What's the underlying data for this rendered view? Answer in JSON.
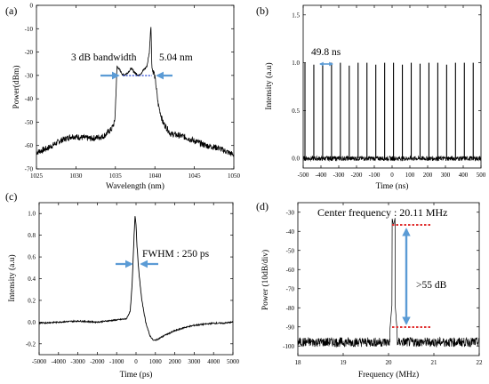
{
  "chart_data": [
    {
      "panel": "(a)",
      "type": "line",
      "xlabel": "Wavelength (nm)",
      "ylabel": "Power(dBm)",
      "xlim": [
        1025,
        1050
      ],
      "ylim": [
        -70,
        0
      ],
      "xticks": [
        "1025",
        "1030",
        "1035",
        "1040",
        "1045",
        "1050"
      ],
      "yticks": [
        "0",
        "-10",
        "-20",
        "-30",
        "-40",
        "-50",
        "-60",
        "-70"
      ],
      "series": [
        {
          "x": [
            1025.0,
            1026.5,
            1028.0,
            1029.5,
            1030.5,
            1032.0,
            1033.5,
            1034.5,
            1034.9,
            1035.0,
            1035.2,
            1035.6,
            1036.0,
            1036.5,
            1037.0,
            1037.5,
            1038.0,
            1038.5,
            1039.0,
            1039.3,
            1039.5,
            1039.6,
            1039.7,
            1039.9,
            1040.1,
            1040.4,
            1041.0,
            1042.0,
            1043.5,
            1045.0,
            1046.5,
            1048.0,
            1050.0
          ],
          "y": [
            -63,
            -61,
            -58,
            -56,
            -56.5,
            -57,
            -56,
            -53,
            -50,
            -44,
            -26,
            -28,
            -30,
            -29,
            -27,
            -29,
            -30,
            -28,
            -26,
            -20,
            -8,
            -24,
            -28,
            -29,
            -33,
            -42,
            -50,
            -55,
            -56,
            -58,
            -60,
            -61,
            -64
          ]
        }
      ],
      "annotations": [
        "3 dB bandwidth",
        "5.04 nm"
      ],
      "arrow_levels_dbm": [
        -30,
        -30
      ]
    },
    {
      "panel": "(b)",
      "type": "line",
      "xlabel": "Time (ns)",
      "ylabel": "Intensity (a.u)",
      "xlim": [
        -500,
        500
      ],
      "ylim": [
        -0.1,
        1.6
      ],
      "xticks": [
        "-500",
        "-400",
        "-300",
        "-200",
        "-100",
        "0",
        "100",
        "200",
        "300",
        "400",
        "500"
      ],
      "yticks": [
        "1.5",
        "1.0",
        "0.5",
        "0.0"
      ],
      "period_ns": 49.8,
      "pulse_heights": [
        1.0,
        0.98,
        0.99,
        1.0,
        1.0,
        0.97,
        1.0,
        1.0,
        0.98,
        1.0,
        1.0,
        0.98,
        1.0,
        0.99,
        1.0,
        1.0,
        0.98,
        1.0,
        1.0,
        1.0
      ],
      "annotations": [
        "49.8 ns"
      ]
    },
    {
      "panel": "(c)",
      "type": "line",
      "xlabel": "Time (ps)",
      "ylabel": "Intensity (a.u)",
      "xlim": [
        -5000,
        5000
      ],
      "ylim": [
        -0.3,
        1.1
      ],
      "xticks": [
        "-5000",
        "-4000",
        "-3000",
        "-2000",
        "-1000",
        "0",
        "1000",
        "2000",
        "3000",
        "4000",
        "5000"
      ],
      "yticks": [
        "1.0",
        "0.8",
        "0.6",
        "0.4",
        "0.2",
        "0.0",
        "-0.2"
      ],
      "series": [
        {
          "x": [
            -5000,
            -4000,
            -3000,
            -2000,
            -1000,
            -500,
            -300,
            -200,
            -100,
            -50,
            0,
            50,
            150,
            300,
            500,
            700,
            900,
            1100,
            1500,
            2000,
            2500,
            3000,
            3500,
            4000,
            4500,
            5000
          ],
          "y": [
            -0.01,
            0.0,
            0.01,
            0.0,
            0.02,
            0.03,
            0.1,
            0.35,
            0.8,
            0.98,
            0.9,
            0.7,
            0.45,
            0.2,
            0.0,
            -0.12,
            -0.17,
            -0.16,
            -0.12,
            -0.08,
            -0.05,
            -0.03,
            -0.02,
            -0.01,
            -0.01,
            0.0
          ]
        }
      ],
      "annotations": [
        "FWHM : 250 ps"
      ]
    },
    {
      "panel": "(d)",
      "type": "line",
      "xlabel": "Frequency (MHz)",
      "ylabel": "Power (10dB/div)",
      "xlim": [
        18,
        22
      ],
      "ylim": [
        -105,
        -25
      ],
      "xticks": [
        "18",
        "19",
        "20",
        "21",
        "22"
      ],
      "yticks": [
        "-30",
        "-40",
        "-50",
        "-60",
        "-70",
        "-80",
        "-90",
        "-100"
      ],
      "peak": {
        "x": 20.11,
        "y": -37
      },
      "noise_floor_db": -98,
      "annotations": [
        "Center frequency : 20.11 MHz",
        ">55 dB"
      ]
    }
  ]
}
